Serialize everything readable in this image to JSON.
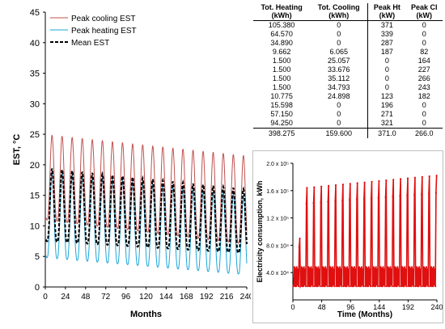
{
  "table": {
    "headers": [
      "Tot. Heating",
      "Tot. Cooling",
      "Peak Ht",
      "Peak Cl"
    ],
    "units": [
      "(kWh)",
      "(kWh)",
      "(kW)",
      "(kW)"
    ],
    "rows": [
      [
        "105.380",
        "0",
        "371",
        "0"
      ],
      [
        "64.570",
        "0",
        "339",
        "0"
      ],
      [
        "34.890",
        "0",
        "287",
        "0"
      ],
      [
        "9.662",
        "6.065",
        "187",
        "82"
      ],
      [
        "1.500",
        "25.057",
        "0",
        "164"
      ],
      [
        "1.500",
        "33.676",
        "0",
        "227"
      ],
      [
        "1.500",
        "35.112",
        "0",
        "266"
      ],
      [
        "1.500",
        "34.793",
        "0",
        "243"
      ],
      [
        "10.775",
        "24.898",
        "123",
        "182"
      ],
      [
        "15.598",
        "0",
        "196",
        "0"
      ],
      [
        "57.150",
        "0",
        "271",
        "0"
      ],
      [
        "94.250",
        "0",
        "321",
        "0"
      ]
    ],
    "totals": [
      "398.275",
      "159.600",
      "371.0",
      "266.0"
    ]
  },
  "chart_data": [
    {
      "type": "line",
      "title": "",
      "xlabel": "Months",
      "ylabel": "EST, °C",
      "xlim": [
        0,
        240
      ],
      "ylim": [
        0,
        45
      ],
      "xticks": [
        0,
        24,
        48,
        72,
        96,
        120,
        144,
        168,
        192,
        216,
        240
      ],
      "yticks": [
        0,
        5,
        10,
        15,
        20,
        25,
        30,
        35,
        40,
        45
      ],
      "grid": false,
      "legend": "top-left",
      "period_months": 12,
      "series": [
        {
          "name": "Peak cooling EST",
          "color": "#c0504d",
          "style": "solid",
          "envelope": {
            "peak_start": 25.0,
            "peak_end": 21.5,
            "trough_start": 11.0,
            "trough_end": 7.0
          }
        },
        {
          "name": "Peak heating EST",
          "color": "#1aa6d9",
          "style": "solid",
          "envelope": {
            "peak_start": 19.0,
            "peak_end": 15.0,
            "trough_start": 4.8,
            "trough_end": 2.0
          }
        },
        {
          "name": "Mean EST",
          "color": "#000000",
          "style": "dashed",
          "envelope": {
            "peak_start": 19.5,
            "peak_end": 16.0,
            "trough_start": 7.5,
            "trough_end": 5.5
          }
        }
      ]
    },
    {
      "type": "line",
      "title": "",
      "xlabel": "Time (Months)",
      "ylabel": "Electricity consumption, kWh",
      "xlim": [
        0,
        240
      ],
      "ylim": [
        0,
        200000
      ],
      "xticks": [
        0,
        48,
        96,
        144,
        192,
        240
      ],
      "xtick_labels": [
        "0",
        "48",
        "96",
        "144",
        "192",
        "240"
      ],
      "yticks": [
        40000,
        80000,
        120000,
        160000,
        200000
      ],
      "ytick_labels": [
        "4.0 x 10⁴",
        "8.0 x 10⁴",
        "1.2 x 10⁵",
        "1.6 x 10⁵",
        "2.0 x 10⁵"
      ],
      "grid": false,
      "legend": "none",
      "period_months": 12,
      "series": [
        {
          "color": "#e01010",
          "base": 20000,
          "shoulder": 48000,
          "peak_start": 90000,
          "peak_second": 164000,
          "peak_end": 182000
        }
      ]
    }
  ]
}
